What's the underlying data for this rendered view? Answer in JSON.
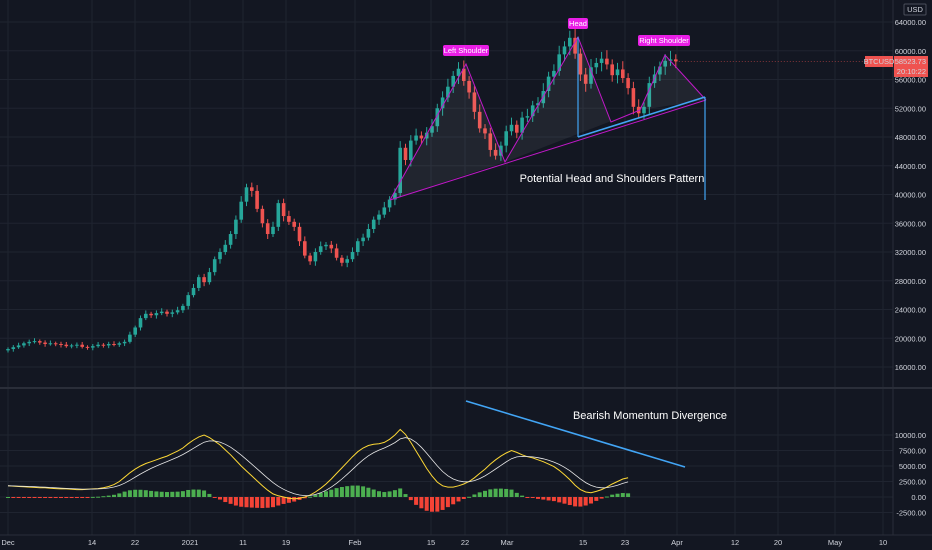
{
  "symbol": {
    "ticker": "BTCUSD",
    "price": "58523.73",
    "countdown": "20:10:22"
  },
  "currency": "USD",
  "price_axis": {
    "labels": [
      "64000.00",
      "60000.00",
      "56000.00",
      "52000.00",
      "48000.00",
      "44000.00",
      "40000.00",
      "36000.00",
      "32000.00",
      "28000.00",
      "24000.00",
      "20000.00",
      "16000.00"
    ]
  },
  "macd_axis": {
    "labels": [
      "10000.00",
      "7500.00",
      "5000.00",
      "2500.00",
      "0.00",
      "-2500.00"
    ]
  },
  "time_axis": {
    "labels": [
      "Dec",
      "14",
      "22",
      "2021",
      "11",
      "19",
      "Feb",
      "15",
      "22",
      "Mar",
      "15",
      "23",
      "Apr",
      "12",
      "20",
      "May",
      "10"
    ]
  },
  "pattern_labels": {
    "left_shoulder": "Left Shoulder",
    "head": "Head",
    "right_shoulder": "Right Shoulder"
  },
  "annotations": {
    "hs_pattern": "Potential Head and Shoulders Pattern",
    "divergence": "Bearish Momentum Divergence"
  },
  "colors": {
    "bg": "#131722",
    "grid": "#1f2430",
    "up": "#26a69a",
    "down": "#ef5350",
    "macd_up": "#4caf50",
    "macd_down": "#f44336",
    "pattern": "#c218c9",
    "trend": "#42a5f5",
    "label_bg": "#e91ee6",
    "macd_line": "#ffffff",
    "signal_line": "#fdd835"
  },
  "chart_data": {
    "type": "candlestick",
    "symbol": "BTCUSD",
    "currency": "USD",
    "y_range": [
      16000,
      64000
    ],
    "closes": [
      18500,
      18750,
      19000,
      19300,
      19500,
      19600,
      19400,
      19200,
      19300,
      19200,
      19100,
      18900,
      19000,
      19100,
      18800,
      18700,
      18900,
      19100,
      19000,
      19200,
      19100,
      19300,
      19500,
      20500,
      21500,
      22800,
      23400,
      23200,
      23500,
      23700,
      23400,
      23600,
      23900,
      24500,
      26000,
      27000,
      28500,
      27800,
      29200,
      31000,
      32000,
      33000,
      34500,
      36500,
      39000,
      41000,
      40500,
      38000,
      36000,
      34500,
      35500,
      38800,
      37000,
      36200,
      35500,
      33500,
      31500,
      30700,
      32000,
      32800,
      33000,
      32500,
      31200,
      30500,
      31000,
      32000,
      33500,
      34000,
      35200,
      36500,
      37200,
      38200,
      39300,
      40200,
      46500,
      44800,
      47500,
      48200,
      47800,
      48600,
      49500,
      52000,
      53500,
      55000,
      56500,
      57500,
      55800,
      54200,
      51500,
      49200,
      48500,
      46200,
      45400,
      46800,
      48800,
      49700,
      48600,
      50700,
      50900,
      52400,
      52700,
      54400,
      56400,
      57200,
      59500,
      60600,
      61800,
      59600,
      56700,
      55400,
      57700,
      58300,
      58900,
      58100,
      56600,
      57400,
      56200,
      54800,
      52200,
      51300,
      52200,
      55500,
      56700,
      57800,
      58600,
      58800,
      58523
    ],
    "macd": [
      1800,
      1750,
      1700,
      1650,
      1600,
      1550,
      1500,
      1500,
      1400,
      1350,
      1300,
      1300,
      1250,
      1200,
      1200,
      1250,
      1300,
      1350,
      1500,
      1700,
      2000,
      2500,
      3200,
      3900,
      4500,
      5000,
      5400,
      5700,
      6000,
      6300,
      6600,
      7000,
      7400,
      7900,
      8600,
      9200,
      9700,
      10000,
      9600,
      9000,
      8400,
      7600,
      6800,
      5900,
      5000,
      4200,
      3400,
      2600,
      1800,
      1100,
      500,
      200,
      0,
      -200,
      -300,
      -200,
      0,
      300,
      800,
      1400,
      2100,
      2900,
      3800,
      4700,
      5600,
      6500,
      7300,
      7900,
      8300,
      8500,
      8600,
      8800,
      9300,
      10000,
      10900,
      10100,
      8800,
      7400,
      6000,
      4600,
      3400,
      2400,
      1800,
      1600,
      1600,
      1800,
      2100,
      2500,
      3100,
      3800,
      4500,
      5300,
      6000,
      6600,
      7100,
      7500,
      7200,
      6800,
      6500,
      6300,
      6000,
      5700,
      5300,
      4900,
      4300,
      3600,
      2800,
      1900,
      1200,
      800,
      700,
      900,
      1200,
      1600,
      2100,
      2500,
      2900,
      3100
    ]
  }
}
